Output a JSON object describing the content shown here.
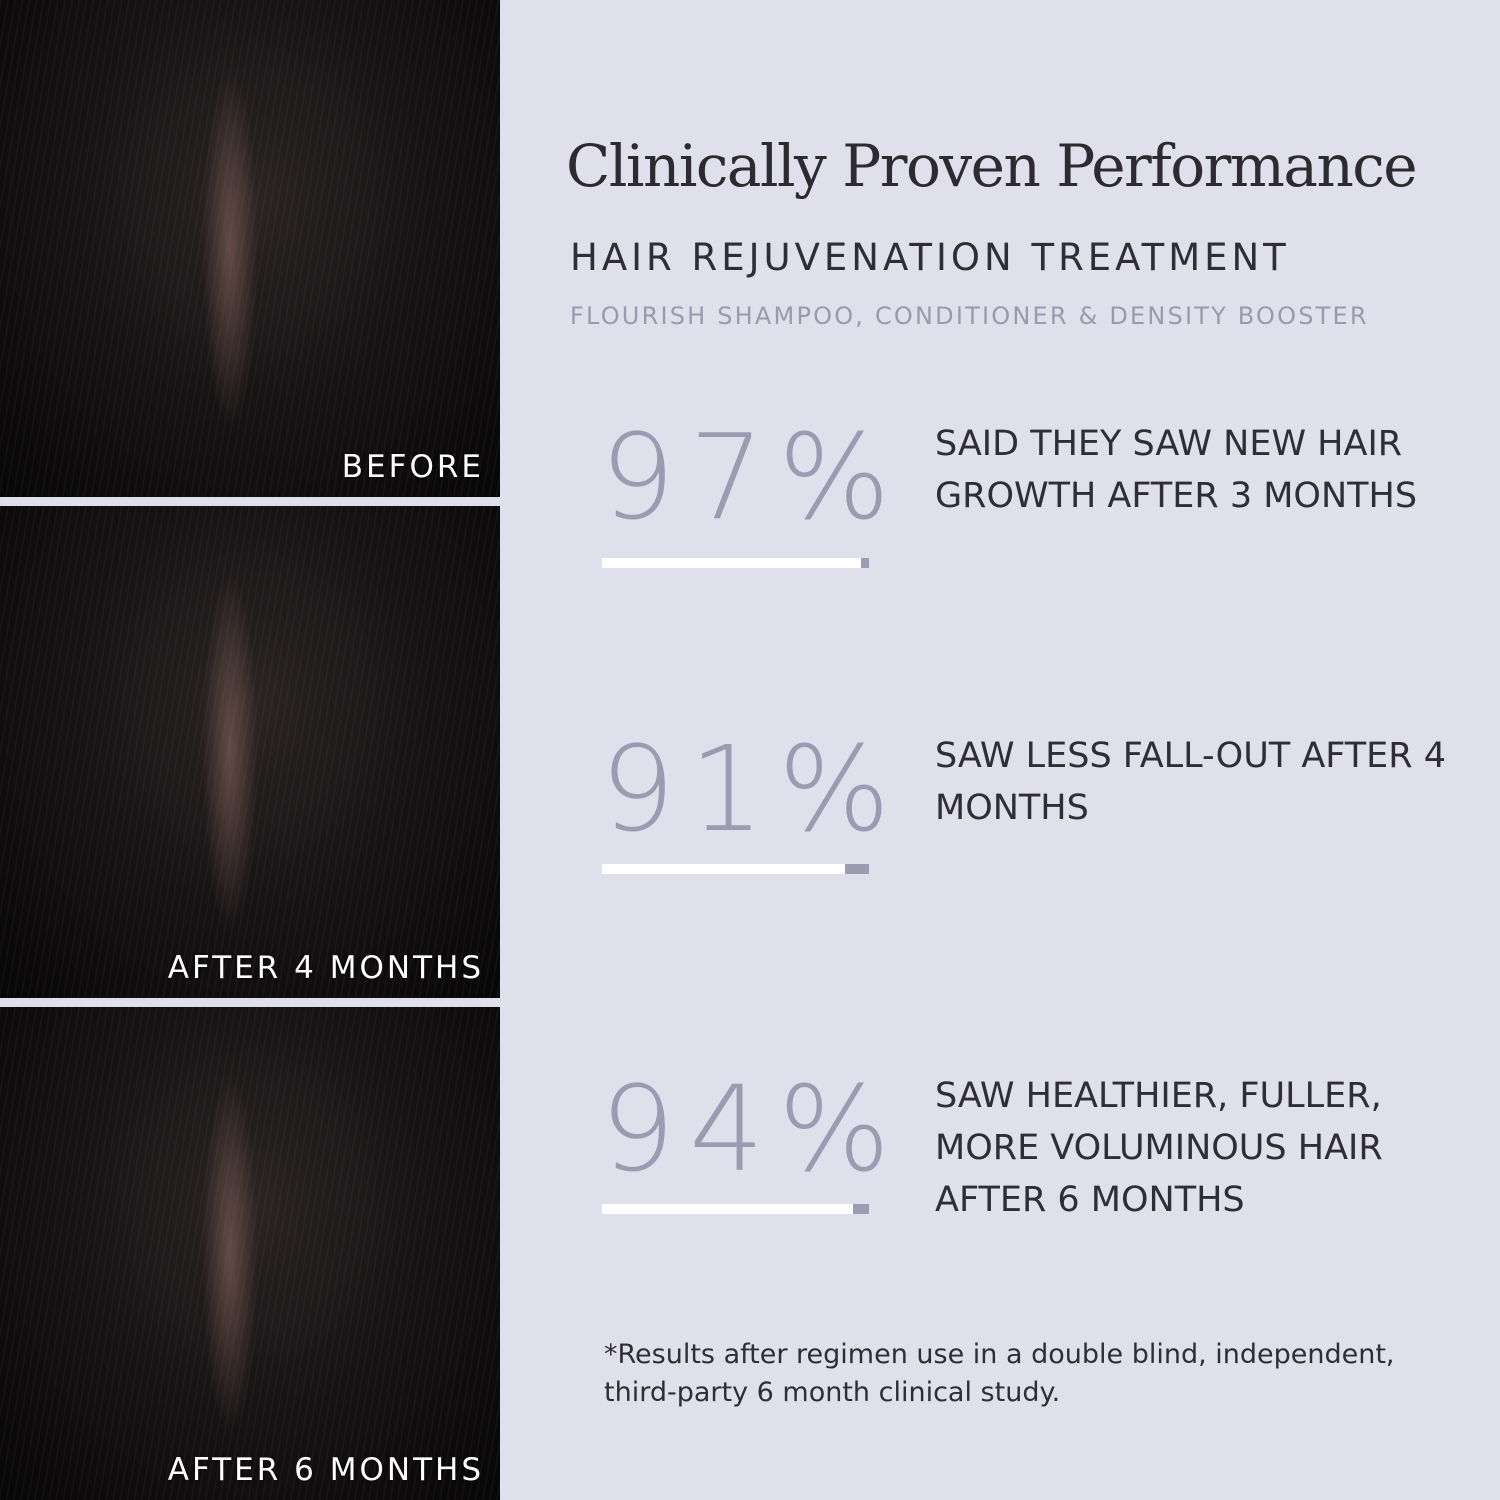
{
  "photos": [
    {
      "caption": "BEFORE"
    },
    {
      "caption": "AFTER 4 MONTHS"
    },
    {
      "caption": "AFTER 6 MONTHS"
    }
  ],
  "title": "Clinically Proven Performance",
  "subtitle": "HAIR REJUVENATION TREATMENT",
  "products": "FLOURISH SHAMPOO, CONDITIONER & DENSITY BOOSTER",
  "stats": [
    {
      "value": "97%",
      "percent": 97,
      "text": "SAID THEY SAW NEW HAIR GROWTH AFTER 3 MONTHS"
    },
    {
      "value": "91%",
      "percent": 91,
      "text": "SAW LESS FALL-OUT AFTER 4 MONTHS"
    },
    {
      "value": "94%",
      "percent": 94,
      "text": "SAW HEALTHIER, FULLER, MORE VOLUMINOUS HAIR AFTER 6 MONTHS"
    }
  ],
  "footnote": "*Results after regimen use in a double blind, independent, third-party 6 month clinical study.",
  "colors": {
    "background": "#e0dfec",
    "accent": "#9c9bb2",
    "text": "#2f2e36"
  }
}
